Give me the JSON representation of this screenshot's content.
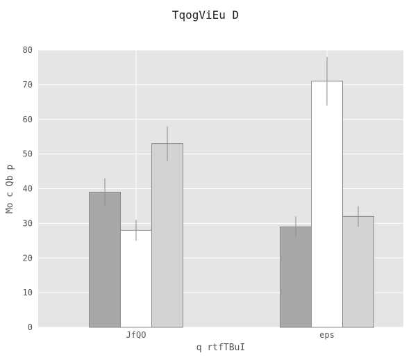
{
  "chart_data": {
    "type": "bar",
    "title": "TqogViEu D",
    "xlabel": "q rtfTBuI",
    "ylabel": "Mo c Qb p",
    "categories": [
      "JfQO",
      "eps"
    ],
    "series": [
      {
        "values": [
          39,
          29
        ],
        "errors": [
          4,
          3
        ],
        "color": "#a8a8a8"
      },
      {
        "values": [
          28,
          71
        ],
        "errors": [
          3,
          7
        ],
        "color": "#ffffff"
      },
      {
        "values": [
          53,
          32
        ],
        "errors": [
          5,
          3
        ],
        "color": "#d3d3d3"
      }
    ],
    "ylim": [
      0,
      80
    ],
    "yticks": [
      0,
      10,
      20,
      30,
      40,
      50,
      60,
      70,
      80
    ],
    "grid": true,
    "background": "#e5e5e5",
    "grid_color": "#ffffff",
    "bar_edge_color": "#8a8a8a",
    "error_color": "#8c8c8c"
  }
}
